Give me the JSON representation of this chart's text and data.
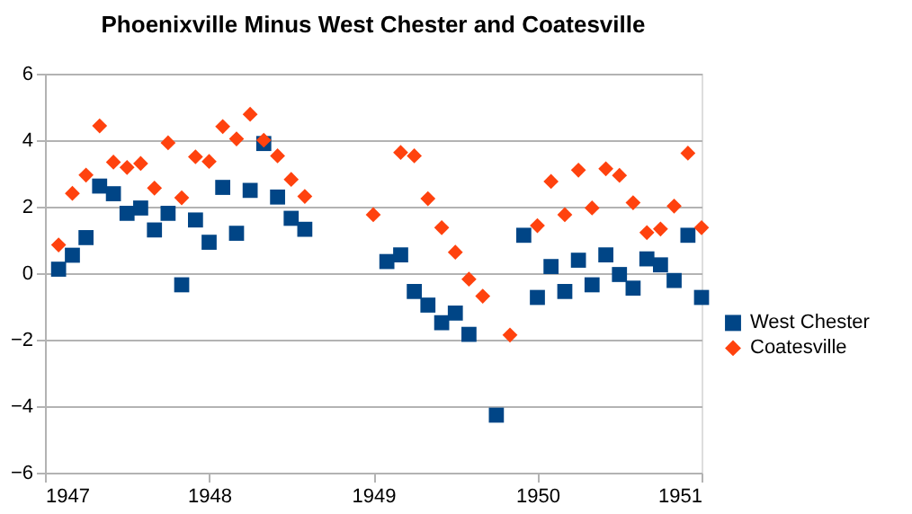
{
  "chart_data": {
    "type": "scatter",
    "title": "Phoenixville Minus West Chester and Coatesville",
    "xlim": [
      1947,
      1951
    ],
    "xticks": [
      1947,
      1948,
      1949,
      1950,
      1951
    ],
    "ylim": [
      -6,
      6
    ],
    "yticks": [
      -6,
      -4,
      -2,
      0,
      2,
      4,
      6
    ],
    "grid": "y",
    "legend": "right",
    "series": [
      {
        "name": "West Chester",
        "color": "#004586",
        "marker": "square",
        "x": [
          1947.083,
          1947.167,
          1947.25,
          1947.333,
          1947.417,
          1947.5,
          1947.583,
          1947.667,
          1947.75,
          1947.833,
          1947.917,
          1948.0,
          1948.083,
          1948.167,
          1948.25,
          1948.333,
          1948.417,
          1948.5,
          1948.583,
          1949.083,
          1949.167,
          1949.25,
          1949.333,
          1949.417,
          1949.5,
          1949.583,
          1949.75,
          1949.917,
          1950.0,
          1950.083,
          1950.167,
          1950.25,
          1950.333,
          1950.417,
          1950.5,
          1950.583,
          1950.667,
          1950.75,
          1950.833,
          1950.917,
          1951.0
        ],
        "values": [
          0.12,
          0.54,
          1.07,
          2.62,
          2.39,
          1.8,
          1.96,
          1.3,
          1.8,
          -0.35,
          1.6,
          0.93,
          2.58,
          1.2,
          2.49,
          3.9,
          2.29,
          1.65,
          1.32,
          0.35,
          0.55,
          -0.55,
          -0.96,
          -1.49,
          -1.2,
          -1.84,
          -4.27,
          1.14,
          -0.73,
          0.2,
          -0.55,
          0.39,
          -0.35,
          0.55,
          -0.04,
          -0.45,
          0.43,
          0.25,
          -0.22,
          1.14,
          -0.73
        ]
      },
      {
        "name": "Coatesville",
        "color": "#ff420e",
        "marker": "diamond",
        "x": [
          1947.083,
          1947.167,
          1947.25,
          1947.333,
          1947.417,
          1947.5,
          1947.583,
          1947.667,
          1947.75,
          1947.833,
          1947.917,
          1948.0,
          1948.083,
          1948.167,
          1948.25,
          1948.333,
          1948.417,
          1948.5,
          1948.583,
          1949.0,
          1949.167,
          1949.25,
          1949.333,
          1949.417,
          1949.5,
          1949.583,
          1949.667,
          1949.833,
          1950.0,
          1950.083,
          1950.167,
          1950.25,
          1950.333,
          1950.417,
          1950.5,
          1950.583,
          1950.667,
          1950.75,
          1950.833,
          1950.917,
          1951.0
        ],
        "values": [
          0.85,
          2.4,
          2.95,
          4.43,
          3.34,
          3.18,
          3.3,
          2.56,
          3.92,
          2.27,
          3.5,
          3.36,
          4.41,
          4.04,
          4.78,
          4.0,
          3.53,
          2.82,
          2.31,
          1.76,
          3.63,
          3.53,
          2.24,
          1.37,
          0.63,
          -0.18,
          -0.69,
          -1.86,
          1.43,
          2.76,
          1.76,
          3.1,
          1.96,
          3.14,
          2.94,
          2.12,
          1.22,
          1.33,
          2.02,
          3.61,
          1.37
        ]
      }
    ]
  }
}
